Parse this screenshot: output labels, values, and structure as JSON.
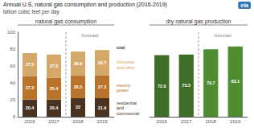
{
  "title": "Annual U.S. natural gas consumption and production (2016-2019)",
  "subtitle": "billion cubic feet per day",
  "annotations": [
    "eia"
  ],
  "chart_data": [
    {
      "type": "bar",
      "title": "natural gas consumption",
      "categories": [
        "2016",
        "2017",
        "2018",
        "2019"
      ],
      "stacked": true,
      "data_labels": true,
      "series": [
        {
          "name": "residential\nand\ncommercial",
          "color": "#4a3220",
          "values": [
            20.4,
            20.4,
            22.0,
            21.9
          ]
        },
        {
          "name": "electric\npower",
          "color": "#b8722a",
          "values": [
            27.3,
            25.4,
            26.5,
            27.3
          ]
        },
        {
          "name": "industrial\nand other",
          "color": "#d4a868",
          "values": [
            27.5,
            27.8,
            28.6,
            29.7
          ]
        }
      ],
      "totals": {
        "label": "total",
        "values": [
          75.1,
          73.7,
          77.1,
          78.8
        ]
      },
      "annotations": [
        {
          "text": "forecast",
          "from": "2018"
        }
      ],
      "ylim": [
        0,
        100
      ],
      "yticks": [
        0,
        20,
        40,
        60,
        80,
        100
      ],
      "grid": false
    },
    {
      "type": "bar",
      "title": "dry natural gas production",
      "categories": [
        "2016",
        "2017",
        "2018",
        "2019"
      ],
      "values": [
        72.9,
        73.5,
        79.7,
        83.1
      ],
      "colors": [
        "#3d6e25",
        "#3d6e25",
        "#4e8e30",
        "#4e8e30"
      ],
      "data_labels": true,
      "annotations": [
        {
          "text": "forecast",
          "from": "2018"
        }
      ],
      "ylim": [
        0,
        100
      ],
      "yticks": [
        0,
        20,
        40,
        60,
        80,
        100
      ],
      "grid": false,
      "tick_labels": "x"
    }
  ]
}
